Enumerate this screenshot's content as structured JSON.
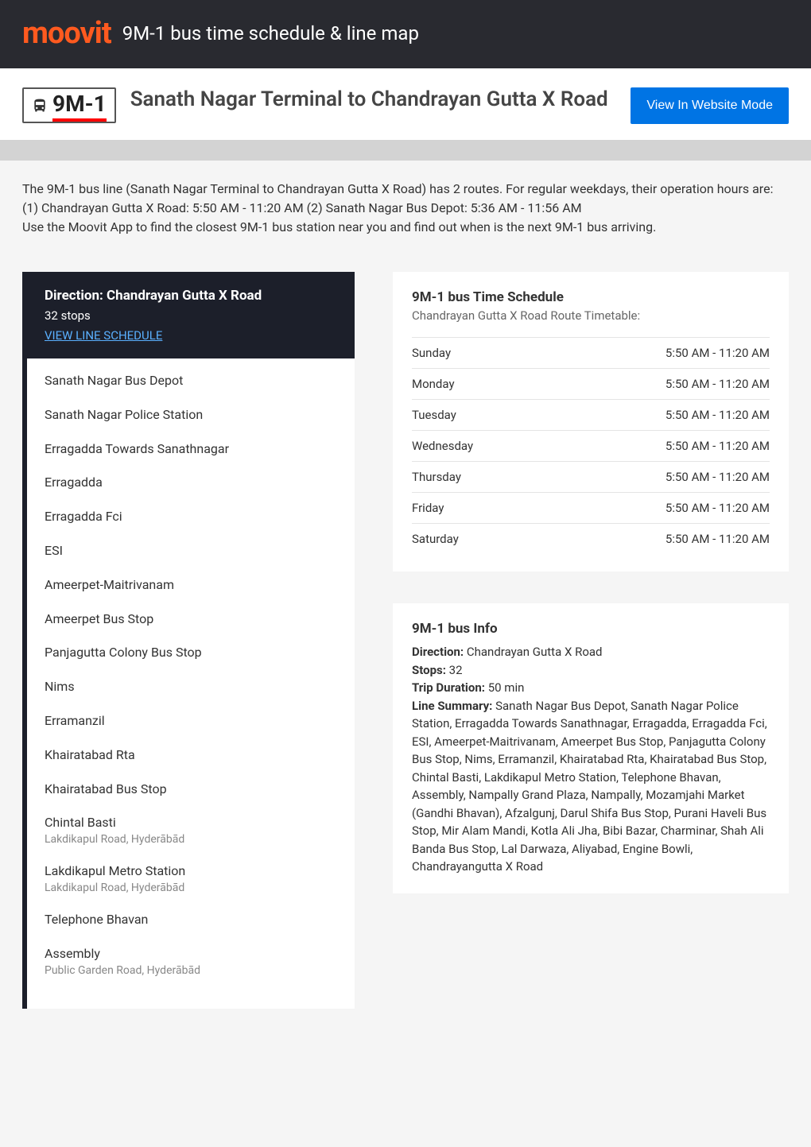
{
  "header": {
    "logo_text": "moovit",
    "page_title": "9M-1 bus time schedule & line map"
  },
  "hero": {
    "bus_glyph": "🚌",
    "route_number": "9M-1",
    "route_title": "Sanath Nagar Terminal to Chandrayan Gutta X Road",
    "website_button": "View In Website Mode"
  },
  "intro": {
    "p1": "The 9M-1 bus line (Sanath Nagar Terminal to Chandrayan Gutta X Road) has 2 routes. For regular weekdays, their operation hours are:",
    "p2": "(1) Chandrayan Gutta X Road: 5:50 AM - 11:20 AM (2) Sanath Nagar Bus Depot: 5:36 AM - 11:56 AM",
    "p3": "Use the Moovit App to find the closest 9M-1 bus station near you and find out when is the next 9M-1 bus arriving."
  },
  "direction": {
    "title": "Direction: Chandrayan Gutta X Road",
    "stops_count": "32 stops",
    "view_link": "VIEW LINE SCHEDULE"
  },
  "stops": [
    {
      "name": "Sanath Nagar Bus Depot",
      "sub": ""
    },
    {
      "name": "Sanath Nagar Police Station",
      "sub": ""
    },
    {
      "name": "Erragadda Towards Sanathnagar",
      "sub": ""
    },
    {
      "name": "Erragadda",
      "sub": ""
    },
    {
      "name": "Erragadda Fci",
      "sub": ""
    },
    {
      "name": "ESI",
      "sub": ""
    },
    {
      "name": "Ameerpet-Maitrivanam",
      "sub": ""
    },
    {
      "name": "Ameerpet Bus Stop",
      "sub": ""
    },
    {
      "name": "Panjagutta Colony Bus Stop",
      "sub": ""
    },
    {
      "name": "Nims",
      "sub": ""
    },
    {
      "name": "Erramanzil",
      "sub": ""
    },
    {
      "name": "Khairatabad Rta",
      "sub": ""
    },
    {
      "name": "Khairatabad Bus Stop",
      "sub": ""
    },
    {
      "name": "Chintal Basti",
      "sub": "Lakdikapul Road, Hyderābād"
    },
    {
      "name": "Lakdikapul Metro Station",
      "sub": "Lakdikapul Road, Hyderābād"
    },
    {
      "name": "Telephone Bhavan",
      "sub": ""
    },
    {
      "name": "Assembly",
      "sub": "Public Garden Road, Hyderābād"
    }
  ],
  "schedule": {
    "title": "9M-1 bus Time Schedule",
    "subtitle": "Chandrayan Gutta X Road Route Timetable:",
    "rows": [
      {
        "day": "Sunday",
        "time": "5:50 AM - 11:20 AM"
      },
      {
        "day": "Monday",
        "time": "5:50 AM - 11:20 AM"
      },
      {
        "day": "Tuesday",
        "time": "5:50 AM - 11:20 AM"
      },
      {
        "day": "Wednesday",
        "time": "5:50 AM - 11:20 AM"
      },
      {
        "day": "Thursday",
        "time": "5:50 AM - 11:20 AM"
      },
      {
        "day": "Friday",
        "time": "5:50 AM - 11:20 AM"
      },
      {
        "day": "Saturday",
        "time": "5:50 AM - 11:20 AM"
      }
    ]
  },
  "info": {
    "title": "9M-1 bus Info",
    "direction_label": "Direction:",
    "direction_value": " Chandrayan Gutta X Road",
    "stops_label": "Stops:",
    "stops_value": " 32",
    "duration_label": "Trip Duration:",
    "duration_value": " 50 min",
    "summary_label": "Line Summary:",
    "summary_value": " Sanath Nagar Bus Depot, Sanath Nagar Police Station, Erragadda Towards Sanathnagar, Erragadda, Erragadda Fci, ESI, Ameerpet-Maitrivanam, Ameerpet Bus Stop, Panjagutta Colony Bus Stop, Nims, Erramanzil, Khairatabad Rta, Khairatabad Bus Stop, Chintal Basti, Lakdikapul Metro Station, Telephone Bhavan, Assembly, Nampally Grand Plaza, Nampally, Mozamjahi Market (Gandhi Bhavan), Afzalgunj, Darul Shifa Bus Stop, Purani Haveli Bus Stop, Mir Alam Mandi, Kotla Ali Jha, Bibi Bazar, Charminar, Shah Ali Banda Bus Stop, Lal Darwaza, Aliyabad, Engine Bowli, Chandrayangutta X Road"
  },
  "colors": {
    "header_bg": "#292a30",
    "logo": "#ff5a1f",
    "badge_underline": "#ff0000",
    "button_bg": "#0074e4",
    "direction_bg": "#1c1f2a",
    "link": "#5ab0ff",
    "body_bg": "#f5f5f5",
    "border": "#e5e5e5"
  }
}
